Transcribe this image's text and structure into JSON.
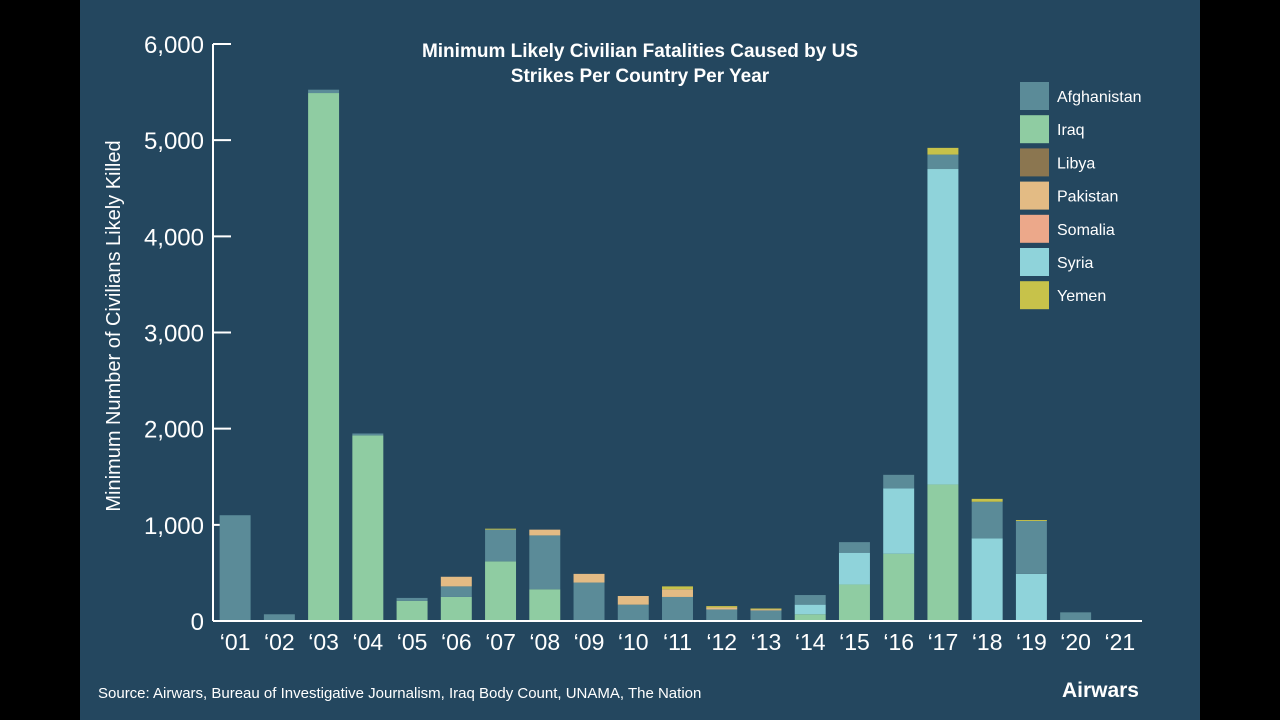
{
  "chart_data": {
    "type": "bar",
    "stacked": true,
    "title_lines": [
      "Minimum Likely Civilian Fatalities Caused by US",
      "Strikes Per Country Per Year"
    ],
    "xlabel": "",
    "ylabel": "Minimum Number of Civilians Likely Killed",
    "ylim": [
      0,
      6000
    ],
    "yticks": [
      0,
      1000,
      2000,
      3000,
      4000,
      5000,
      6000
    ],
    "ytick_labels": [
      "0",
      "1,000",
      "2,000",
      "3,000",
      "4,000",
      "5,000",
      "6,000"
    ],
    "categories": [
      "‘01",
      "‘02",
      "‘03",
      "‘04",
      "‘05",
      "‘06",
      "‘07",
      "‘08",
      "‘09",
      "‘10",
      "‘11",
      "‘12",
      "‘13",
      "‘14",
      "‘15",
      "‘16",
      "‘17",
      "‘18",
      "‘19",
      "‘20",
      "‘21"
    ],
    "series": [
      {
        "name": "Iraq",
        "color": "#8fcca2",
        "values": [
          0,
          0,
          5490,
          1930,
          210,
          250,
          620,
          330,
          0,
          0,
          0,
          0,
          0,
          70,
          380,
          700,
          1420,
          0,
          0,
          0,
          0
        ]
      },
      {
        "name": "Syria",
        "color": "#8fd3da",
        "values": [
          0,
          0,
          0,
          0,
          0,
          0,
          0,
          0,
          0,
          0,
          0,
          0,
          0,
          100,
          330,
          680,
          3280,
          860,
          490,
          0,
          0
        ]
      },
      {
        "name": "Afghanistan",
        "color": "#5b8b98",
        "values": [
          1100,
          70,
          35,
          20,
          30,
          110,
          330,
          560,
          400,
          170,
          250,
          120,
          110,
          100,
          110,
          140,
          150,
          380,
          550,
          90,
          0
        ]
      },
      {
        "name": "Libya",
        "color": "#8b7650",
        "values": [
          0,
          0,
          0,
          0,
          0,
          0,
          0,
          0,
          0,
          0,
          0,
          0,
          0,
          0,
          0,
          0,
          0,
          0,
          0,
          0,
          0
        ]
      },
      {
        "name": "Pakistan",
        "color": "#e3bb84",
        "values": [
          0,
          0,
          0,
          0,
          0,
          100,
          0,
          60,
          90,
          90,
          80,
          20,
          10,
          0,
          0,
          0,
          0,
          0,
          0,
          0,
          0
        ]
      },
      {
        "name": "Somalia",
        "color": "#eca88a",
        "values": [
          0,
          0,
          0,
          0,
          0,
          0,
          0,
          0,
          0,
          0,
          0,
          0,
          0,
          0,
          0,
          0,
          0,
          0,
          0,
          0,
          0
        ]
      },
      {
        "name": "Yemen",
        "color": "#c7c24a",
        "values": [
          0,
          0,
          0,
          0,
          0,
          0,
          10,
          0,
          0,
          0,
          30,
          15,
          10,
          0,
          0,
          0,
          70,
          30,
          10,
          0,
          0
        ]
      }
    ],
    "legend": [
      "Afghanistan",
      "Iraq",
      "Libya",
      "Pakistan",
      "Somalia",
      "Syria",
      "Yemen"
    ],
    "legend_position": "top-right",
    "source": "Source: Airwars, Bureau of Investigative Journalism, Iraq Body Count, UNAMA, The Nation",
    "brand": "Airwars",
    "colors": {
      "background": "#24475f",
      "text": "#ffffff",
      "axis": "#ffffff"
    }
  }
}
